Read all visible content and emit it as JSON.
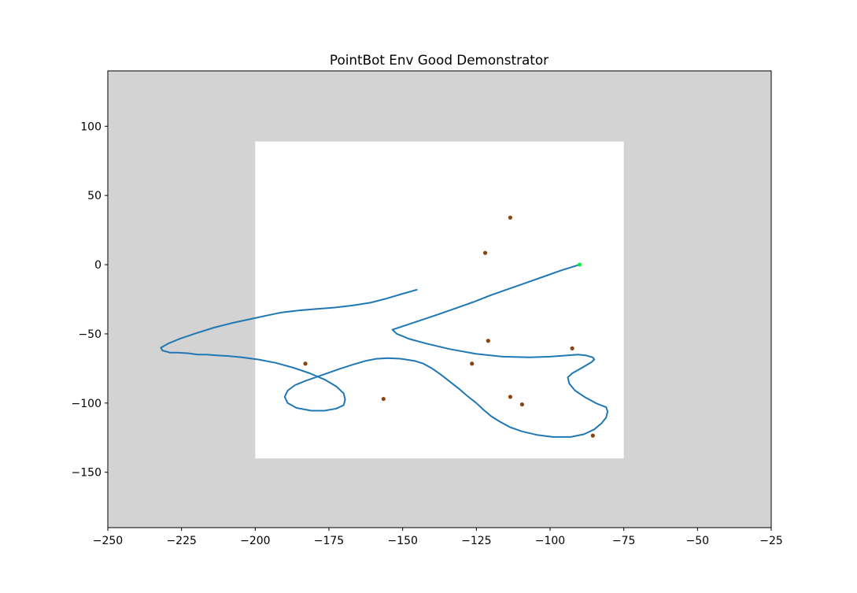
{
  "chart_data": {
    "type": "line",
    "title": "PointBot Env Good Demonstrator",
    "xlabel": "",
    "ylabel": "",
    "xlim": [
      -250,
      -25
    ],
    "ylim": [
      -190,
      140
    ],
    "xticks": [
      -250,
      -225,
      -200,
      -175,
      -150,
      -125,
      -100,
      -75,
      -50,
      -25
    ],
    "yticks": [
      -150,
      -100,
      -50,
      0,
      50,
      100
    ],
    "grid": false,
    "colors": {
      "background_region": "#d3d3d3",
      "free_space": "#ffffff",
      "trajectory": "#1f77b4",
      "obstacle_points": "#8b4513",
      "start_point": "#00ee33"
    },
    "free_region": {
      "x": [
        -200,
        -75
      ],
      "y": [
        -140,
        89
      ]
    },
    "series": [
      {
        "values": [
          [
            -90.0,
            0.0
          ],
          [
            -96.0,
            -4.0
          ],
          [
            -102.0,
            -8.5
          ],
          [
            -108.0,
            -13.0
          ],
          [
            -114.0,
            -17.5
          ],
          [
            -120.0,
            -22.0
          ],
          [
            -126.0,
            -27.0
          ],
          [
            -132.0,
            -31.5
          ],
          [
            -138.0,
            -36.0
          ],
          [
            -145.0,
            -41.0
          ],
          [
            -150.0,
            -44.5
          ],
          [
            -153.5,
            -47.0
          ],
          [
            -152.0,
            -50.0
          ],
          [
            -148.0,
            -53.5
          ],
          [
            -142.0,
            -57.0
          ],
          [
            -134.0,
            -61.0
          ],
          [
            -125.0,
            -64.5
          ],
          [
            -116.0,
            -66.5
          ],
          [
            -107.0,
            -67.0
          ],
          [
            -100.0,
            -66.5
          ],
          [
            -94.0,
            -65.5
          ],
          [
            -90.5,
            -65.0
          ],
          [
            -88.0,
            -65.5
          ],
          [
            -85.5,
            -67.0
          ],
          [
            -85.0,
            -68.5
          ],
          [
            -86.0,
            -70.5
          ],
          [
            -88.0,
            -73.0
          ],
          [
            -90.0,
            -75.5
          ],
          [
            -92.5,
            -78.5
          ],
          [
            -94.0,
            -81.5
          ],
          [
            -93.5,
            -86.0
          ],
          [
            -91.5,
            -91.0
          ],
          [
            -88.0,
            -96.0
          ],
          [
            -84.0,
            -100.5
          ],
          [
            -81.0,
            -103.0
          ],
          [
            -80.5,
            -106.0
          ],
          [
            -81.0,
            -110.5
          ],
          [
            -82.5,
            -114.5
          ],
          [
            -85.0,
            -119.0
          ],
          [
            -88.5,
            -122.5
          ],
          [
            -93.0,
            -124.5
          ],
          [
            -99.0,
            -124.5
          ],
          [
            -104.5,
            -123.0
          ],
          [
            -109.5,
            -120.5
          ],
          [
            -113.5,
            -117.5
          ],
          [
            -117.0,
            -113.5
          ],
          [
            -120.0,
            -109.5
          ],
          [
            -122.5,
            -105.0
          ],
          [
            -125.0,
            -100.0
          ],
          [
            -128.0,
            -95.0
          ],
          [
            -131.0,
            -89.5
          ],
          [
            -134.0,
            -84.5
          ],
          [
            -137.0,
            -79.5
          ],
          [
            -140.0,
            -75.0
          ],
          [
            -143.0,
            -71.5
          ],
          [
            -146.0,
            -69.5
          ],
          [
            -150.5,
            -68.0
          ],
          [
            -155.0,
            -67.5
          ],
          [
            -159.0,
            -68.0
          ],
          [
            -162.5,
            -69.5
          ],
          [
            -166.5,
            -72.0
          ],
          [
            -171.0,
            -75.0
          ],
          [
            -175.0,
            -78.0
          ],
          [
            -179.0,
            -81.0
          ],
          [
            -183.0,
            -84.0
          ],
          [
            -186.5,
            -87.0
          ],
          [
            -189.0,
            -91.0
          ],
          [
            -190.0,
            -95.5
          ],
          [
            -189.0,
            -100.0
          ],
          [
            -186.0,
            -103.5
          ],
          [
            -181.0,
            -105.5
          ],
          [
            -176.5,
            -105.5
          ],
          [
            -172.5,
            -104.0
          ],
          [
            -170.0,
            -101.5
          ],
          [
            -169.5,
            -97.5
          ],
          [
            -170.0,
            -93.0
          ],
          [
            -172.5,
            -88.0
          ],
          [
            -176.5,
            -83.0
          ],
          [
            -181.5,
            -78.5
          ],
          [
            -187.0,
            -74.5
          ],
          [
            -193.0,
            -71.0
          ],
          [
            -199.0,
            -68.5
          ],
          [
            -204.5,
            -67.0
          ],
          [
            -209.0,
            -66.0
          ],
          [
            -213.0,
            -65.5
          ],
          [
            -216.5,
            -65.0
          ],
          [
            -219.5,
            -65.0
          ],
          [
            -223.0,
            -64.0
          ],
          [
            -226.5,
            -63.5
          ],
          [
            -229.0,
            -63.5
          ],
          [
            -231.5,
            -62.0
          ],
          [
            -232.0,
            -60.0
          ],
          [
            -229.5,
            -57.0
          ],
          [
            -225.5,
            -53.5
          ],
          [
            -220.0,
            -49.5
          ],
          [
            -214.0,
            -45.5
          ],
          [
            -207.5,
            -42.0
          ],
          [
            -201.0,
            -39.0
          ],
          [
            -195.5,
            -36.5
          ],
          [
            -191.0,
            -34.5
          ],
          [
            -185.0,
            -33.0
          ],
          [
            -179.0,
            -32.0
          ],
          [
            -173.0,
            -31.0
          ],
          [
            -167.0,
            -29.5
          ],
          [
            -161.0,
            -27.5
          ],
          [
            -155.5,
            -24.5
          ],
          [
            -150.0,
            -21.0
          ],
          [
            -145.0,
            -18.0
          ]
        ]
      }
    ],
    "obstacle_points": [
      [
        -113.5,
        34.0
      ],
      [
        -122.0,
        8.5
      ],
      [
        -121.0,
        -55.0
      ],
      [
        -92.5,
        -60.5
      ],
      [
        -183.0,
        -71.5
      ],
      [
        -126.5,
        -71.5
      ],
      [
        -113.5,
        -95.5
      ],
      [
        -156.5,
        -97.0
      ],
      [
        -109.5,
        -101.0
      ],
      [
        -85.5,
        -123.5
      ]
    ],
    "start_point": [
      -90.0,
      0.0
    ]
  }
}
